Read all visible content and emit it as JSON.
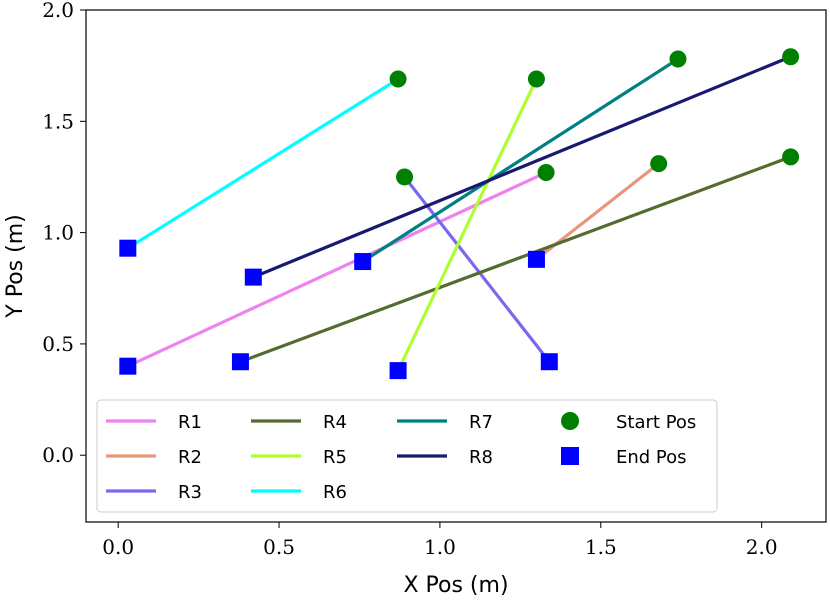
{
  "chart_data": {
    "type": "line",
    "title": "",
    "xlabel": "X Pos (m)",
    "ylabel": "Y Pos (m)",
    "xlim": [
      -0.1,
      2.2
    ],
    "ylim": [
      -0.3,
      2.0
    ],
    "xticks": [
      0.0,
      0.5,
      1.0,
      1.5,
      2.0
    ],
    "xtick_labels": [
      "0.0",
      "0.5",
      "1.0",
      "1.5",
      "2.0"
    ],
    "yticks": [
      0.0,
      0.5,
      1.0,
      1.5,
      2.0
    ],
    "ytick_labels": [
      "0.0",
      "0.5",
      "1.0",
      "1.5",
      "2.0"
    ],
    "grid": false,
    "legend_position": "lower-left",
    "series": [
      {
        "name": "R1",
        "color": "#ee82ee",
        "start": [
          1.33,
          1.27
        ],
        "end": [
          0.03,
          0.4
        ]
      },
      {
        "name": "R2",
        "color": "#e9967a",
        "start": [
          1.68,
          1.31
        ],
        "end": [
          1.3,
          0.88
        ]
      },
      {
        "name": "R3",
        "color": "#7b68ee",
        "start": [
          0.89,
          1.25
        ],
        "end": [
          1.34,
          0.42
        ]
      },
      {
        "name": "R4",
        "color": "#556b2f",
        "start": [
          2.09,
          1.34
        ],
        "end": [
          0.38,
          0.42
        ]
      },
      {
        "name": "R5",
        "color": "#adff2f",
        "start": [
          1.3,
          1.69
        ],
        "end": [
          0.87,
          0.38
        ]
      },
      {
        "name": "R6",
        "color": "#00ffff",
        "start": [
          0.87,
          1.69
        ],
        "end": [
          0.03,
          0.93
        ]
      },
      {
        "name": "R7",
        "color": "#008080",
        "start": [
          1.74,
          1.78
        ],
        "end": [
          0.76,
          0.87
        ]
      },
      {
        "name": "R8",
        "color": "#191970",
        "start": [
          2.09,
          1.79
        ],
        "end": [
          0.42,
          0.8
        ]
      }
    ],
    "markers": {
      "start": {
        "label": "Start Pos",
        "color": "#008000",
        "shape": "circle"
      },
      "end": {
        "label": "End Pos",
        "color": "#0000ff",
        "shape": "square"
      }
    }
  }
}
